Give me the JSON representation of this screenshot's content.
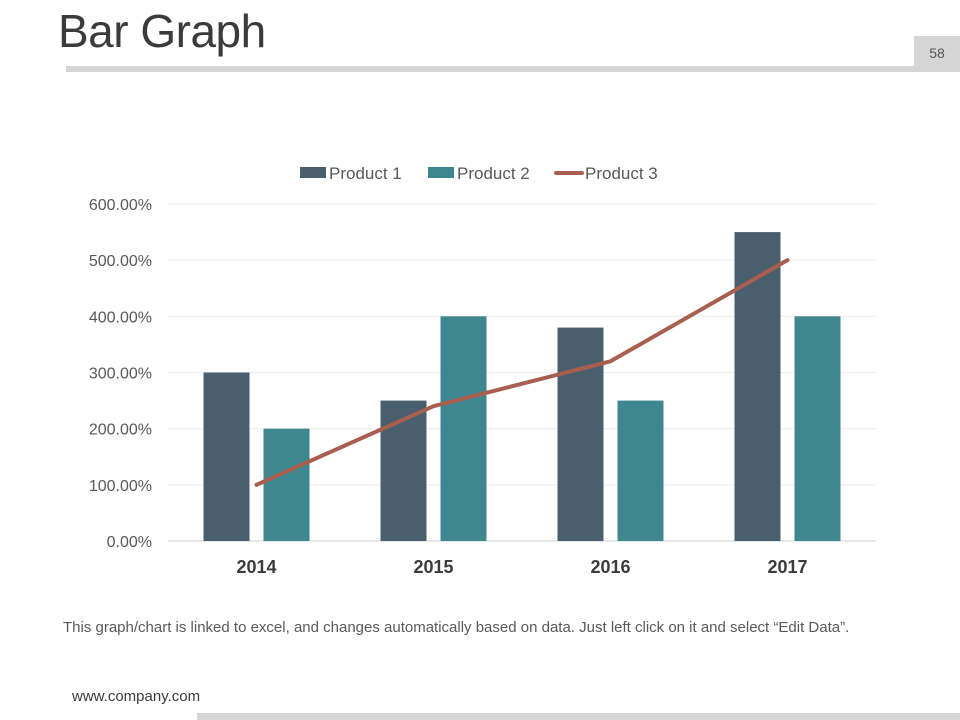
{
  "slide": {
    "title": "Bar Graph",
    "page_number": "58",
    "note": "This graph/chart is linked to excel, and changes automatically based on data. Just left click on it and select “Edit Data”.",
    "footer_url": "www.company.com"
  },
  "colors": {
    "product1": "#4a5f6e",
    "product2": "#3f8790",
    "product3": "#a95f50"
  },
  "chart_data": {
    "type": "bar",
    "categories": [
      "2014",
      "2015",
      "2016",
      "2017"
    ],
    "series": [
      {
        "name": "Product 1",
        "kind": "bar",
        "values": [
          300,
          250,
          380,
          550
        ]
      },
      {
        "name": "Product 2",
        "kind": "bar",
        "values": [
          200,
          400,
          250,
          400
        ]
      },
      {
        "name": "Product 3",
        "kind": "line",
        "values": [
          100,
          240,
          320,
          500
        ]
      }
    ],
    "yticks": [
      "0.00%",
      "100.00%",
      "200.00%",
      "300.00%",
      "400.00%",
      "500.00%",
      "600.00%"
    ],
    "ylim": [
      0,
      600
    ],
    "legend": [
      "Product 1",
      "Product 2",
      "Product 3"
    ],
    "title": "",
    "xlabel": "",
    "ylabel": "",
    "grid": true
  }
}
